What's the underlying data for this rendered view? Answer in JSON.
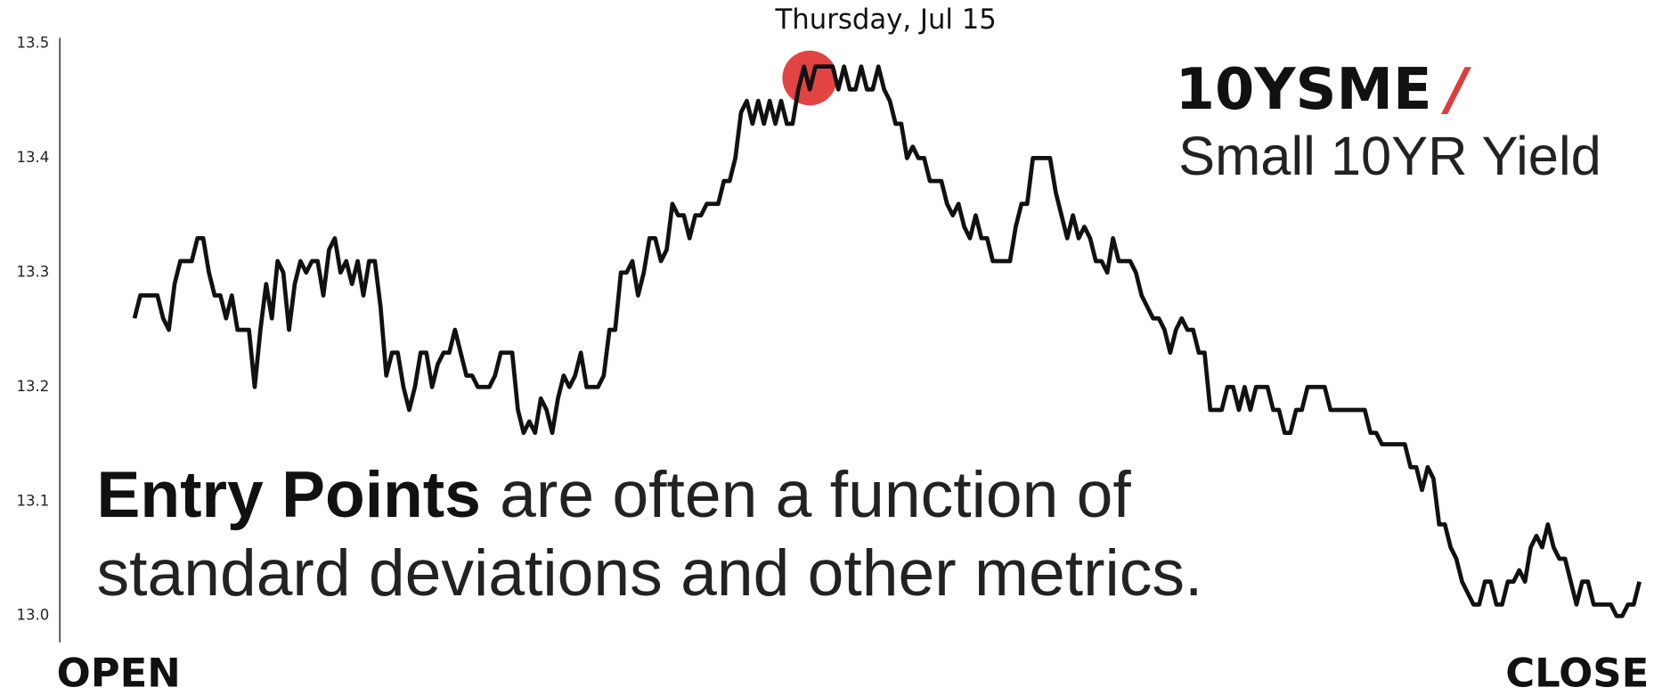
{
  "chart_data": {
    "type": "line",
    "title": "Thursday, Jul 15",
    "ticker": "10YSME",
    "ticker_mark": "/",
    "ticker_mark_color": "#e03a3a",
    "subtitle": "Small 10YR Yield",
    "annotation": {
      "bold": "Entry Points",
      "line1": "are often a function of",
      "line2": "standard deviations and other metrics."
    },
    "x_start_label": "OPEN",
    "x_end_label": "CLOSE",
    "color": "#111111",
    "highlight": {
      "x": 118,
      "y": 13.47,
      "color": "#e03a3a"
    },
    "ylim": [
      12.977,
      13.505
    ],
    "yticks": [
      {
        "value": 13,
        "label": "13.0"
      },
      13.1,
      13.2,
      13.3,
      13.4,
      13.5
    ],
    "values": [
      13.26,
      13.28,
      13.28,
      13.28,
      13.28,
      13.26,
      13.25,
      13.29,
      13.31,
      13.31,
      13.31,
      13.33,
      13.33,
      13.3,
      13.28,
      13.28,
      13.26,
      13.28,
      13.25,
      13.25,
      13.25,
      13.2,
      13.25,
      13.29,
      13.26,
      13.31,
      13.3,
      13.25,
      13.29,
      13.31,
      13.3,
      13.31,
      13.31,
      13.28,
      13.32,
      13.33,
      13.3,
      13.31,
      13.29,
      13.31,
      13.28,
      13.31,
      13.31,
      13.27,
      13.21,
      13.23,
      13.23,
      13.2,
      13.18,
      13.2,
      13.23,
      13.23,
      13.2,
      13.22,
      13.23,
      13.23,
      13.25,
      13.23,
      13.21,
      13.21,
      13.2,
      13.2,
      13.2,
      13.21,
      13.23,
      13.23,
      13.23,
      13.18,
      13.16,
      13.17,
      13.16,
      13.19,
      13.18,
      13.16,
      13.19,
      13.21,
      13.2,
      13.21,
      13.23,
      13.2,
      13.2,
      13.2,
      13.21,
      13.25,
      13.25,
      13.3,
      13.3,
      13.31,
      13.28,
      13.3,
      13.33,
      13.33,
      13.31,
      13.32,
      13.36,
      13.35,
      13.35,
      13.33,
      13.35,
      13.35,
      13.36,
      13.36,
      13.36,
      13.38,
      13.38,
      13.4,
      13.44,
      13.45,
      13.43,
      13.45,
      13.43,
      13.45,
      13.43,
      13.45,
      13.43,
      13.43,
      13.46,
      13.48,
      13.46,
      13.48,
      13.48,
      13.48,
      13.48,
      13.46,
      13.48,
      13.46,
      13.46,
      13.48,
      13.46,
      13.46,
      13.48,
      13.46,
      13.45,
      13.43,
      13.43,
      13.4,
      13.41,
      13.4,
      13.4,
      13.38,
      13.38,
      13.38,
      13.36,
      13.35,
      13.36,
      13.34,
      13.33,
      13.35,
      13.33,
      13.33,
      13.31,
      13.31,
      13.31,
      13.31,
      13.34,
      13.36,
      13.36,
      13.4,
      13.4,
      13.4,
      13.4,
      13.37,
      13.35,
      13.33,
      13.35,
      13.33,
      13.34,
      13.33,
      13.31,
      13.31,
      13.3,
      13.33,
      13.31,
      13.31,
      13.31,
      13.3,
      13.28,
      13.27,
      13.26,
      13.26,
      13.25,
      13.23,
      13.25,
      13.26,
      13.25,
      13.25,
      13.23,
      13.23,
      13.18,
      13.18,
      13.18,
      13.2,
      13.2,
      13.18,
      13.2,
      13.18,
      13.2,
      13.2,
      13.2,
      13.18,
      13.18,
      13.16,
      13.16,
      13.18,
      13.18,
      13.2,
      13.2,
      13.2,
      13.2,
      13.18,
      13.18,
      13.18,
      13.18,
      13.18,
      13.18,
      13.18,
      13.16,
      13.16,
      13.15,
      13.15,
      13.15,
      13.15,
      13.15,
      13.13,
      13.13,
      13.11,
      13.13,
      13.12,
      13.08,
      13.08,
      13.06,
      13.05,
      13.03,
      13.02,
      13.01,
      13.01,
      13.03,
      13.03,
      13.01,
      13.01,
      13.03,
      13.03,
      13.04,
      13.03,
      13.06,
      13.07,
      13.06,
      13.08,
      13.06,
      13.05,
      13.05,
      13.03,
      13.01,
      13.03,
      13.03,
      13.01,
      13.01,
      13.01,
      13.01,
      13.0,
      13.0,
      13.01,
      13.01,
      13.03
    ]
  }
}
